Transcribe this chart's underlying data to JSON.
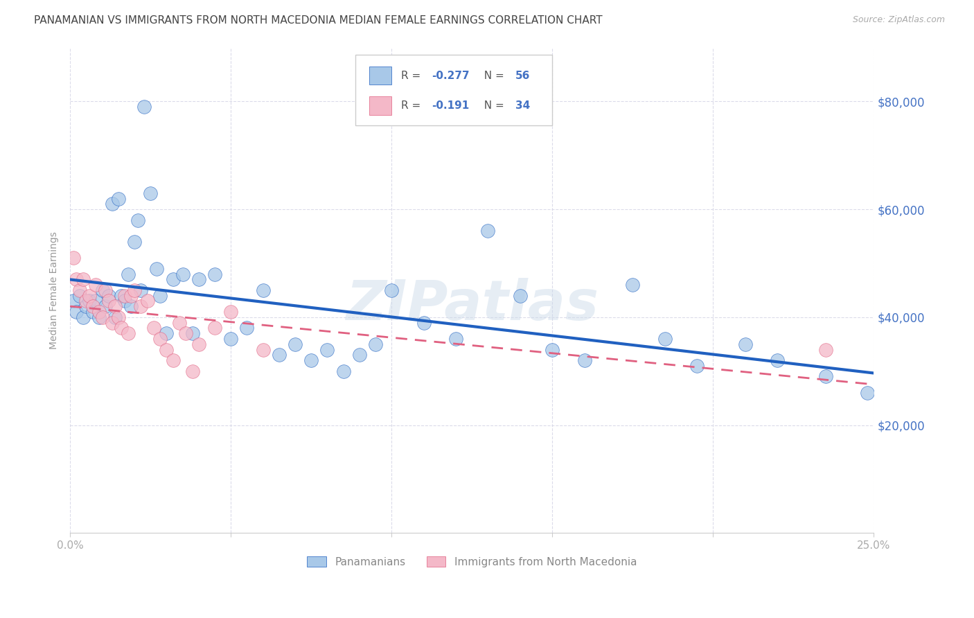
{
  "title": "PANAMANIAN VS IMMIGRANTS FROM NORTH MACEDONIA MEDIAN FEMALE EARNINGS CORRELATION CHART",
  "source": "Source: ZipAtlas.com",
  "ylabel": "Median Female Earnings",
  "yticks": [
    20000,
    40000,
    60000,
    80000
  ],
  "ytick_labels": [
    "$20,000",
    "$40,000",
    "$60,000",
    "$80,000"
  ],
  "xlim": [
    0.0,
    0.25
  ],
  "ylim": [
    0,
    90000
  ],
  "color_blue": "#a8c8e8",
  "color_pink": "#f4b8c8",
  "color_line_blue": "#2060c0",
  "color_line_pink": "#e06080",
  "color_grid": "#d8d8e8",
  "color_title": "#444444",
  "color_yaxis": "#4472c4",
  "color_xaxis": "#aaaaaa",
  "watermark": "ZIPatlas",
  "legend_label1": "Panamanians",
  "legend_label2": "Immigrants from North Macedonia",
  "blue_x": [
    0.001,
    0.002,
    0.003,
    0.004,
    0.005,
    0.006,
    0.007,
    0.008,
    0.009,
    0.01,
    0.011,
    0.012,
    0.013,
    0.014,
    0.015,
    0.016,
    0.017,
    0.018,
    0.019,
    0.02,
    0.021,
    0.022,
    0.023,
    0.025,
    0.027,
    0.028,
    0.03,
    0.032,
    0.035,
    0.038,
    0.04,
    0.045,
    0.05,
    0.055,
    0.06,
    0.065,
    0.07,
    0.075,
    0.08,
    0.085,
    0.09,
    0.095,
    0.1,
    0.11,
    0.12,
    0.13,
    0.14,
    0.15,
    0.16,
    0.175,
    0.185,
    0.195,
    0.21,
    0.22,
    0.235,
    0.248
  ],
  "blue_y": [
    43000,
    41000,
    44000,
    40000,
    42000,
    43000,
    41000,
    43000,
    40000,
    45000,
    42000,
    44000,
    61000,
    40000,
    62000,
    44000,
    43000,
    48000,
    42000,
    54000,
    58000,
    45000,
    79000,
    63000,
    49000,
    44000,
    37000,
    47000,
    48000,
    37000,
    47000,
    48000,
    36000,
    38000,
    45000,
    33000,
    35000,
    32000,
    34000,
    30000,
    33000,
    35000,
    45000,
    39000,
    36000,
    56000,
    44000,
    34000,
    32000,
    46000,
    36000,
    31000,
    35000,
    32000,
    29000,
    26000
  ],
  "pink_x": [
    0.001,
    0.002,
    0.003,
    0.004,
    0.005,
    0.006,
    0.007,
    0.008,
    0.009,
    0.01,
    0.011,
    0.012,
    0.013,
    0.014,
    0.015,
    0.016,
    0.017,
    0.018,
    0.019,
    0.02,
    0.022,
    0.024,
    0.026,
    0.028,
    0.03,
    0.032,
    0.034,
    0.036,
    0.038,
    0.04,
    0.045,
    0.05,
    0.06,
    0.235
  ],
  "pink_y": [
    51000,
    47000,
    45000,
    47000,
    43000,
    44000,
    42000,
    46000,
    41000,
    40000,
    45000,
    43000,
    39000,
    42000,
    40000,
    38000,
    44000,
    37000,
    44000,
    45000,
    42000,
    43000,
    38000,
    36000,
    34000,
    32000,
    39000,
    37000,
    30000,
    35000,
    38000,
    41000,
    34000,
    34000
  ]
}
